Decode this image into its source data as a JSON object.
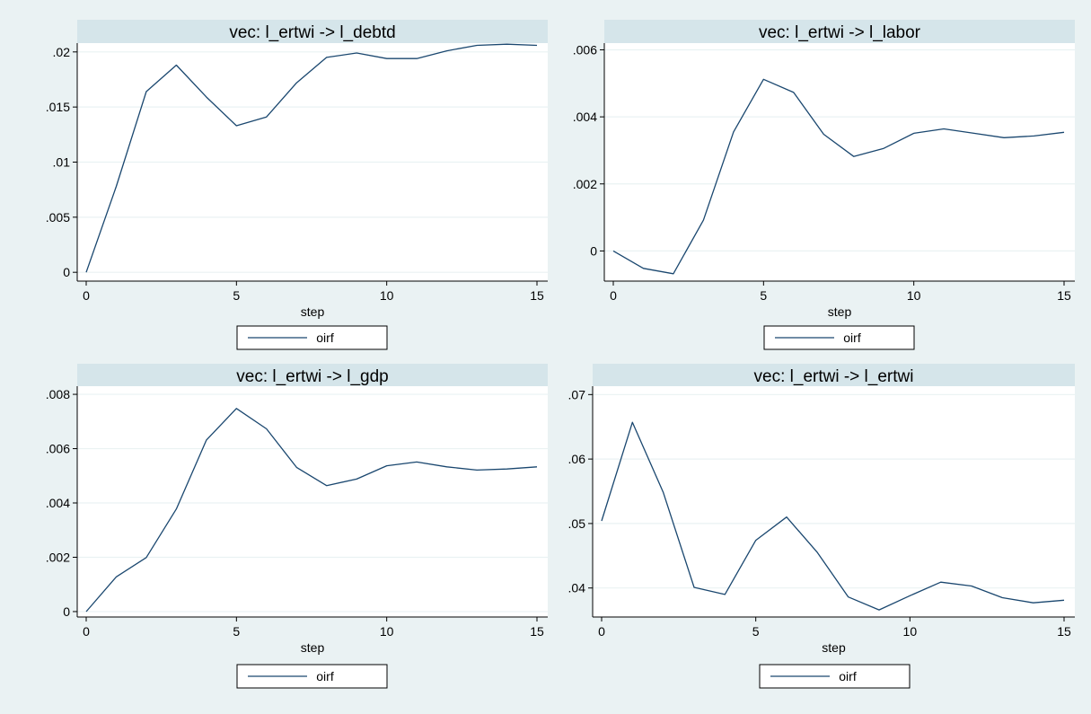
{
  "colors": {
    "background": "#eaf2f3",
    "title_band": "#d5e5ea",
    "plot_background": "#ffffff",
    "series_line": "#1a476f"
  },
  "chart_data": [
    {
      "type": "line",
      "title": "vec: l_ertwi -> l_debtd",
      "xlabel": "step",
      "ylabel": "",
      "xlim": [
        0,
        15
      ],
      "ylim": [
        -0.0008,
        0.0208
      ],
      "xticks": [
        0,
        5,
        10,
        15
      ],
      "xtick_labels": [
        "0",
        "5",
        "10",
        "15"
      ],
      "yticks": [
        0,
        0.005,
        0.01,
        0.015,
        0.02
      ],
      "ytick_labels": [
        "0",
        ".005",
        ".01",
        ".015",
        ".02"
      ],
      "grid": true,
      "legend": {
        "position": "bottom",
        "entries": [
          "oirf"
        ]
      },
      "series": [
        {
          "name": "oirf",
          "x": [
            0,
            1,
            2,
            3,
            4,
            5,
            6,
            7,
            8,
            9,
            10,
            11,
            12,
            13,
            14,
            15
          ],
          "y": [
            0.0,
            0.0078,
            0.0164,
            0.0188,
            0.0159,
            0.0133,
            0.0141,
            0.0172,
            0.0195,
            0.0199,
            0.0194,
            0.0194,
            0.0201,
            0.0206,
            0.0207,
            0.0206
          ]
        }
      ]
    },
    {
      "type": "line",
      "title": "vec: l_ertwi -> l_labor",
      "xlabel": "step",
      "ylabel": "",
      "xlim": [
        0,
        15
      ],
      "ylim": [
        -0.0009,
        0.0062
      ],
      "xticks": [
        0,
        5,
        10,
        15
      ],
      "xtick_labels": [
        "0",
        "5",
        "10",
        "15"
      ],
      "yticks": [
        0,
        0.002,
        0.004,
        0.006
      ],
      "ytick_labels": [
        "0",
        ".002",
        ".004",
        ".006"
      ],
      "grid": true,
      "legend": {
        "position": "bottom",
        "entries": [
          "oirf"
        ]
      },
      "series": [
        {
          "name": "oirf",
          "x": [
            0,
            1,
            2,
            3,
            4,
            5,
            6,
            7,
            8,
            9,
            10,
            11,
            12,
            13,
            14,
            15
          ],
          "y": [
            0.0,
            -0.00052,
            -0.00068,
            0.00092,
            0.00355,
            0.00512,
            0.00473,
            0.00348,
            0.00282,
            0.00306,
            0.00351,
            0.00364,
            0.00351,
            0.00338,
            0.00343,
            0.00354
          ]
        }
      ]
    },
    {
      "type": "line",
      "title": "vec: l_ertwi -> l_gdp",
      "xlabel": "step",
      "ylabel": "",
      "xlim": [
        0,
        15
      ],
      "ylim": [
        -0.0002,
        0.0083
      ],
      "xticks": [
        0,
        5,
        10,
        15
      ],
      "xtick_labels": [
        "0",
        "5",
        "10",
        "15"
      ],
      "yticks": [
        0,
        0.002,
        0.004,
        0.006,
        0.008
      ],
      "ytick_labels": [
        "0",
        ".002",
        ".004",
        ".006",
        ".008"
      ],
      "grid": true,
      "legend": {
        "position": "bottom",
        "entries": [
          "oirf"
        ]
      },
      "series": [
        {
          "name": "oirf",
          "x": [
            0,
            1,
            2,
            3,
            4,
            5,
            6,
            7,
            8,
            9,
            10,
            11,
            12,
            13,
            14,
            15
          ],
          "y": [
            0.0,
            0.00128,
            0.00199,
            0.00378,
            0.00632,
            0.00748,
            0.00673,
            0.00531,
            0.00464,
            0.00488,
            0.00537,
            0.00551,
            0.00533,
            0.00521,
            0.00525,
            0.00533
          ]
        }
      ]
    },
    {
      "type": "line",
      "title": "vec: l_ertwi -> l_ertwi",
      "xlabel": "step",
      "ylabel": "",
      "xlim": [
        0,
        15
      ],
      "ylim": [
        0.0355,
        0.0713
      ],
      "xticks": [
        0,
        5,
        10,
        15
      ],
      "xtick_labels": [
        "0",
        "5",
        "10",
        "15"
      ],
      "yticks": [
        0.04,
        0.05,
        0.06,
        0.07
      ],
      "ytick_labels": [
        ".04",
        ".05",
        ".06",
        ".07"
      ],
      "grid": true,
      "legend": {
        "position": "bottom",
        "entries": [
          "oirf"
        ]
      },
      "series": [
        {
          "name": "oirf",
          "x": [
            0,
            1,
            2,
            3,
            4,
            5,
            6,
            7,
            8,
            9,
            10,
            11,
            12,
            13,
            14,
            15
          ],
          "y": [
            0.0504,
            0.0657,
            0.0548,
            0.0401,
            0.039,
            0.0474,
            0.051,
            0.0455,
            0.0386,
            0.0366,
            0.0388,
            0.0409,
            0.0403,
            0.0385,
            0.0377,
            0.0381
          ]
        }
      ]
    }
  ]
}
